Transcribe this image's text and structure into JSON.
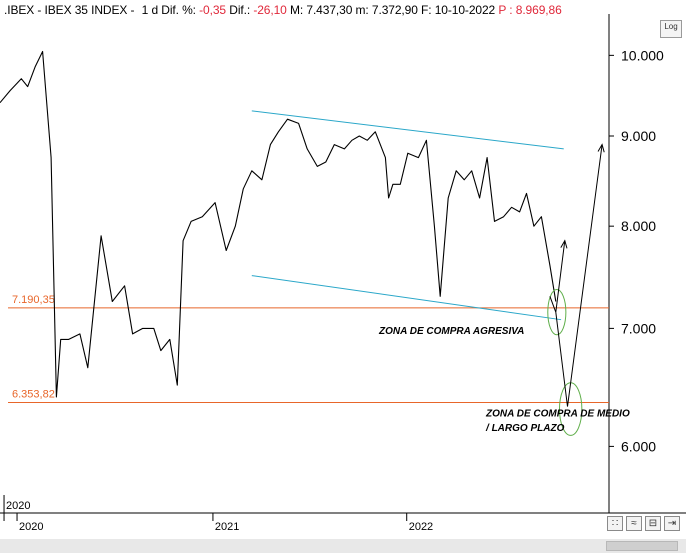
{
  "header": {
    "symbol": ".IBEX - IBEX 35 INDEX -",
    "period": "1 d",
    "dif_pct_label": "Dif. %:",
    "dif_pct_value": "-0,35",
    "dif_label": "Dif.:",
    "dif_value": "-26,10",
    "max_label": "M: 7.437,30",
    "min_label": "m: 7.372,90",
    "date_label": "F: 10-10-2022",
    "price_label": "P : 8.969,86"
  },
  "controls": {
    "log_label": "Log",
    "nav_1": "∷",
    "nav_2": "≈",
    "nav_3": "⊟",
    "nav_4": "⇥"
  },
  "colors": {
    "price_line": "#000000",
    "channel": "#2aa7c9",
    "level": "#e8662a",
    "ellipse": "#5fae4a",
    "negative_text": "#e0283a",
    "axis_text": "#000000"
  },
  "chart_data": {
    "type": "line",
    "title": ".IBEX - IBEX 35 INDEX",
    "xlabel": "",
    "ylabel": "",
    "log_scale": true,
    "grid": false,
    "ylim": [
      5500,
      10500
    ],
    "xlim": [
      "2019-12-01",
      "2023-01-18"
    ],
    "y_ticks": [
      6000,
      7000,
      8000,
      9000,
      10000
    ],
    "y_tick_labels": [
      "6.000",
      "7.000",
      "8.000",
      "9.000",
      "10.000"
    ],
    "x_ticks": [
      "2020-01-02",
      "2021-01-04",
      "2022-01-03"
    ],
    "x_tick_labels": [
      "2020",
      "2021",
      "2022"
    ],
    "cursor_label": "2020",
    "series": [
      {
        "name": ".IBEX",
        "x": [
          "2019-12-01",
          "2019-12-20",
          "2020-01-10",
          "2020-01-22",
          "2020-02-05",
          "2020-02-19",
          "2020-03-06",
          "2020-03-16",
          "2020-03-24",
          "2020-04-08",
          "2020-04-29",
          "2020-05-14",
          "2020-06-08",
          "2020-06-29",
          "2020-07-22",
          "2020-08-06",
          "2020-08-25",
          "2020-09-15",
          "2020-09-28",
          "2020-10-15",
          "2020-10-29",
          "2020-11-09",
          "2020-11-24",
          "2020-12-15",
          "2021-01-08",
          "2021-01-29",
          "2021-02-15",
          "2021-03-02",
          "2021-03-18",
          "2021-04-06",
          "2021-04-22",
          "2021-05-07",
          "2021-05-24",
          "2021-06-14",
          "2021-06-30",
          "2021-07-19",
          "2021-08-04",
          "2021-08-20",
          "2021-09-08",
          "2021-09-22",
          "2021-10-06",
          "2021-10-21",
          "2021-11-05",
          "2021-11-24",
          "2021-11-30",
          "2021-12-08",
          "2021-12-22",
          "2022-01-05",
          "2022-01-25",
          "2022-02-09",
          "2022-02-24",
          "2022-03-07",
          "2022-03-22",
          "2022-04-06",
          "2022-04-21",
          "2022-05-05",
          "2022-05-20",
          "2022-06-03",
          "2022-06-17",
          "2022-07-04",
          "2022-07-19",
          "2022-08-03",
          "2022-08-16",
          "2022-08-30",
          "2022-09-13",
          "2022-09-29",
          "2022-10-10"
        ],
        "y": [
          9400,
          9550,
          9700,
          9600,
          9850,
          10050,
          8750,
          6400,
          6900,
          6900,
          6950,
          6650,
          7900,
          7250,
          7400,
          6950,
          7000,
          7000,
          6800,
          6900,
          6500,
          7850,
          8050,
          8100,
          8250,
          7750,
          8000,
          8400,
          8600,
          8500,
          8900,
          9050,
          9200,
          9150,
          8850,
          8650,
          8700,
          8900,
          8850,
          8950,
          9000,
          8950,
          9050,
          8750,
          8300,
          8450,
          8450,
          8800,
          8750,
          8950,
          8000,
          7300,
          8300,
          8600,
          8500,
          8600,
          8300,
          8750,
          8050,
          8100,
          8200,
          8150,
          8350,
          8000,
          8100,
          7600,
          7250
        ]
      }
    ],
    "horizontal_levels": [
      {
        "value": 7190.35,
        "label": "7.190,35"
      },
      {
        "value": 6353.82,
        "label": "6.353,82"
      }
    ],
    "channel_lines": [
      {
        "x1": "2021-03-18",
        "y1": 9300,
        "x2": "2022-10-25",
        "y2": 8850
      },
      {
        "x1": "2021-03-18",
        "y1": 7500,
        "x2": "2022-10-20",
        "y2": 7080
      }
    ],
    "projection_paths": [
      {
        "points": [
          [
            "2022-09-29",
            7300
          ],
          [
            "2022-10-10",
            7150
          ],
          [
            "2022-10-27",
            7850
          ]
        ]
      },
      {
        "points": [
          [
            "2022-10-10",
            7150
          ],
          [
            "2022-11-01",
            6320
          ],
          [
            "2023-01-05",
            8900
          ]
        ]
      }
    ],
    "zones": [
      {
        "cx": "2022-10-12",
        "cy": 7150,
        "rx_days": 17,
        "ry_ratio": 1.03
      },
      {
        "cx": "2022-11-07",
        "cy": 6300,
        "rx_days": 21,
        "ry_ratio": 1.035
      }
    ],
    "annotations": [
      {
        "text": "ZONA DE COMPRA AGRESIVA",
        "x": "2021-11-12",
        "y": 6950
      },
      {
        "text": "ZONA DE COMPRA DE MEDIO",
        "x": "2022-06-01",
        "y": 6240
      },
      {
        "text": "/ LARGO PLAZO",
        "x": "2022-06-01",
        "y": 6120
      }
    ]
  }
}
